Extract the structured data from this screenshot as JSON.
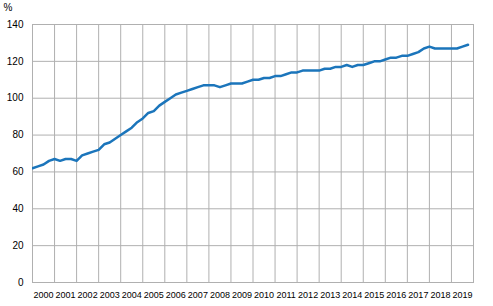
{
  "chart_data": {
    "type": "line",
    "y_label": "%",
    "x": [
      2000,
      2000.25,
      2000.5,
      2000.75,
      2001,
      2001.25,
      2001.5,
      2001.75,
      2002,
      2002.25,
      2002.5,
      2002.75,
      2003,
      2003.25,
      2003.5,
      2003.75,
      2004,
      2004.25,
      2004.5,
      2004.75,
      2005,
      2005.25,
      2005.5,
      2005.75,
      2006,
      2006.25,
      2006.5,
      2006.75,
      2007,
      2007.25,
      2007.5,
      2007.75,
      2008,
      2008.25,
      2008.5,
      2008.75,
      2009,
      2009.25,
      2009.5,
      2009.75,
      2010,
      2010.25,
      2010.5,
      2010.75,
      2011,
      2011.25,
      2011.5,
      2011.75,
      2012,
      2012.25,
      2012.5,
      2012.75,
      2013,
      2013.25,
      2013.5,
      2013.75,
      2014,
      2014.25,
      2014.5,
      2014.75,
      2015,
      2015.25,
      2015.5,
      2015.75,
      2016,
      2016.25,
      2016.5,
      2016.75,
      2017,
      2017.25,
      2017.5,
      2017.75,
      2018,
      2018.25,
      2018.5,
      2018.75,
      2019,
      2019.25,
      2019.5,
      2019.75
    ],
    "values": [
      62,
      63,
      64,
      66,
      67,
      66,
      67,
      67,
      66,
      69,
      70,
      71,
      72,
      75,
      76,
      78,
      80,
      82,
      84,
      87,
      89,
      92,
      93,
      96,
      98,
      100,
      102,
      103,
      104,
      105,
      106,
      107,
      107,
      107,
      106,
      107,
      108,
      108,
      108,
      109,
      110,
      110,
      111,
      111,
      112,
      112,
      113,
      114,
      114,
      115,
      115,
      115,
      115,
      116,
      116,
      117,
      117,
      118,
      117,
      118,
      118,
      119,
      120,
      120,
      121,
      122,
      122,
      123,
      123,
      124,
      125,
      127,
      128,
      127,
      127,
      127,
      127,
      127,
      128,
      129
    ],
    "color": "#1b75bb",
    "xlim": [
      2000,
      2020
    ],
    "xticks": [
      2000,
      2001,
      2002,
      2003,
      2004,
      2005,
      2006,
      2007,
      2008,
      2009,
      2010,
      2011,
      2012,
      2013,
      2014,
      2015,
      2016,
      2017,
      2018,
      2019
    ],
    "ylim": [
      0,
      140
    ],
    "yticks": [
      0,
      20,
      40,
      60,
      80,
      100,
      120,
      140
    ],
    "grid": true
  }
}
